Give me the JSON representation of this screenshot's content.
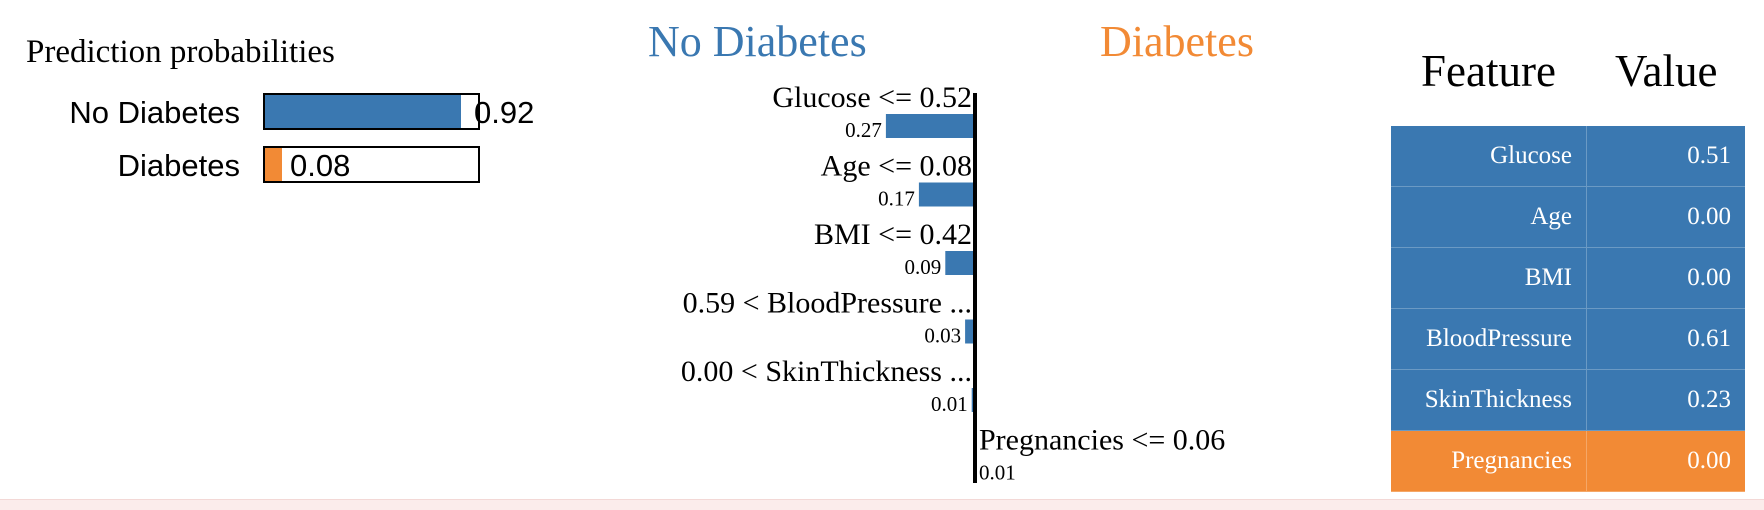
{
  "probabilities": {
    "title": "Prediction probabilities",
    "items": [
      {
        "label": "No Diabetes",
        "value": 0.92,
        "value_text": "0.92",
        "color": "#3a78b1"
      },
      {
        "label": "Diabetes",
        "value": 0.08,
        "value_text": "0.08",
        "color": "#f28a35"
      }
    ]
  },
  "explanation": {
    "negative_class": "No Diabetes",
    "positive_class": "Diabetes",
    "negative_color": "#3a78b1",
    "positive_color": "#f28a35"
  },
  "table": {
    "header_feature": "Feature",
    "header_value": "Value",
    "rows": [
      {
        "feature": "Glucose",
        "value": "0.51",
        "color": "#3a78b1"
      },
      {
        "feature": "Age",
        "value": "0.00",
        "color": "#3a78b1"
      },
      {
        "feature": "BMI",
        "value": "0.00",
        "color": "#3a78b1"
      },
      {
        "feature": "BloodPressure",
        "value": "0.61",
        "color": "#3a78b1"
      },
      {
        "feature": "SkinThickness",
        "value": "0.23",
        "color": "#3a78b1"
      },
      {
        "feature": "Pregnancies",
        "value": "0.00",
        "color": "#f28a35"
      }
    ]
  },
  "chart_data": [
    {
      "type": "bar",
      "title": "Prediction probabilities",
      "categories": [
        "No Diabetes",
        "Diabetes"
      ],
      "values": [
        0.92,
        0.08
      ],
      "xlim": [
        0,
        1
      ]
    },
    {
      "type": "bar",
      "orientation": "horizontal",
      "left_label": "No Diabetes",
      "right_label": "Diabetes",
      "categories": [
        "Glucose <= 0.52",
        "Age <= 0.08",
        "BMI <= 0.42",
        "0.59 < BloodPressure ...",
        "0.00 < SkinThickness ...",
        "Pregnancies <= 0.06"
      ],
      "values": [
        -0.27,
        -0.17,
        -0.09,
        -0.03,
        -0.01,
        0.01
      ],
      "value_labels": [
        "0.27",
        "0.17",
        "0.09",
        "0.03",
        "0.01",
        "0.01"
      ]
    }
  ]
}
